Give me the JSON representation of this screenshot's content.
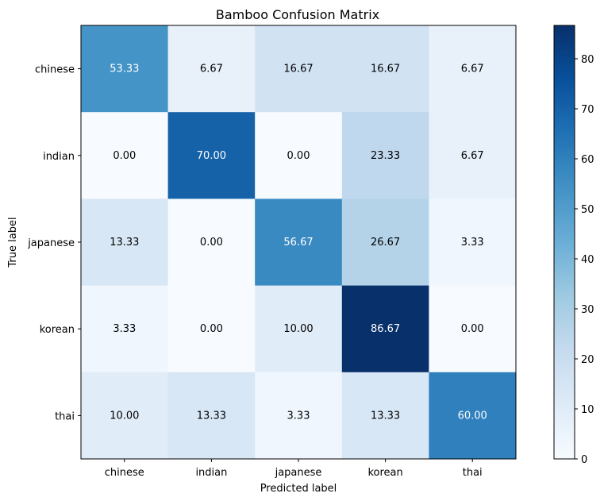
{
  "chart_data": {
    "type": "heatmap",
    "title": "Bamboo Confusion Matrix",
    "xlabel": "Predicted label",
    "ylabel": "True label",
    "x_categories": [
      "chinese",
      "indian",
      "japanese",
      "korean",
      "thai"
    ],
    "y_categories": [
      "chinese",
      "indian",
      "japanese",
      "korean",
      "thai"
    ],
    "values": [
      [
        53.33,
        6.67,
        16.67,
        16.67,
        6.67
      ],
      [
        0.0,
        70.0,
        0.0,
        23.33,
        6.67
      ],
      [
        13.33,
        0.0,
        56.67,
        26.67,
        3.33
      ],
      [
        3.33,
        0.0,
        10.0,
        86.67,
        0.0
      ],
      [
        10.0,
        13.33,
        3.33,
        13.33,
        60.0
      ]
    ],
    "value_format_decimals": 2,
    "colormap": "Blues",
    "colorbar": {
      "range": [
        0,
        86.67
      ],
      "ticks": [
        0,
        10,
        20,
        30,
        40,
        50,
        60,
        70,
        80
      ]
    }
  }
}
